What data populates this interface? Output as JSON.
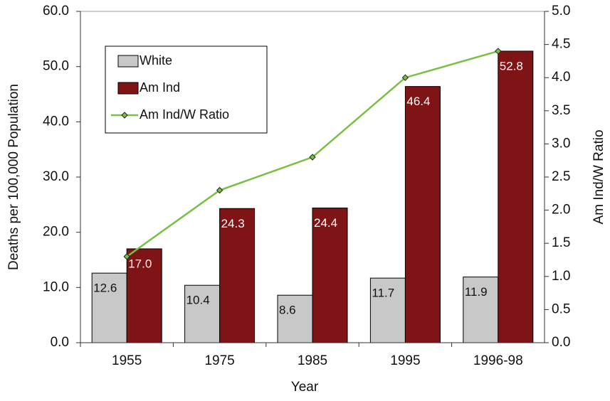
{
  "chart_data": {
    "type": "bar",
    "x_label": "Year",
    "y_label": "Deaths per 100,000 Population",
    "y2_label": "Am Ind/W Ratio",
    "categories": [
      "1955",
      "1975",
      "1985",
      "1995",
      "1996-98"
    ],
    "series": [
      {
        "name": "White",
        "color": "#c8c8c8",
        "values": [
          12.6,
          10.4,
          8.6,
          11.7,
          11.9
        ],
        "value_labels": [
          "12.6",
          "10.4",
          "8.6",
          "11.7",
          "11.9"
        ]
      },
      {
        "name": "Am Ind",
        "color": "#7f1416",
        "values": [
          17.0,
          24.3,
          24.4,
          46.4,
          52.8
        ],
        "value_labels": [
          "17.0",
          "24.3",
          "24.4",
          "46.4",
          "52.8"
        ]
      },
      {
        "name": "Am Ind/W Ratio",
        "color": "#78c043",
        "type": "line",
        "axis": "y2",
        "values": [
          1.3,
          2.3,
          2.8,
          4.0,
          4.4
        ]
      }
    ],
    "ylim": [
      0,
      60
    ],
    "yticks": [
      {
        "value": 0,
        "label": "0.0"
      },
      {
        "value": 10,
        "label": "10.0"
      },
      {
        "value": 20,
        "label": "20.0"
      },
      {
        "value": 30,
        "label": "30.0"
      },
      {
        "value": 40,
        "label": "40.0"
      },
      {
        "value": 50,
        "label": "50.0"
      },
      {
        "value": 60,
        "label": "60.0"
      }
    ],
    "y2lim": [
      0,
      5
    ],
    "y2ticks": [
      {
        "value": 0,
        "label": "0.0"
      },
      0.5,
      {
        "value": 1,
        "label": "1.0"
      },
      1.5,
      {
        "value": 2,
        "label": "2.0"
      },
      2.5,
      {
        "value": 3,
        "label": "3.0"
      },
      3.5,
      {
        "value": 4,
        "label": "4.0"
      },
      4.5,
      {
        "value": 5,
        "label": "5.0"
      }
    ],
    "legend": "upper-left"
  }
}
